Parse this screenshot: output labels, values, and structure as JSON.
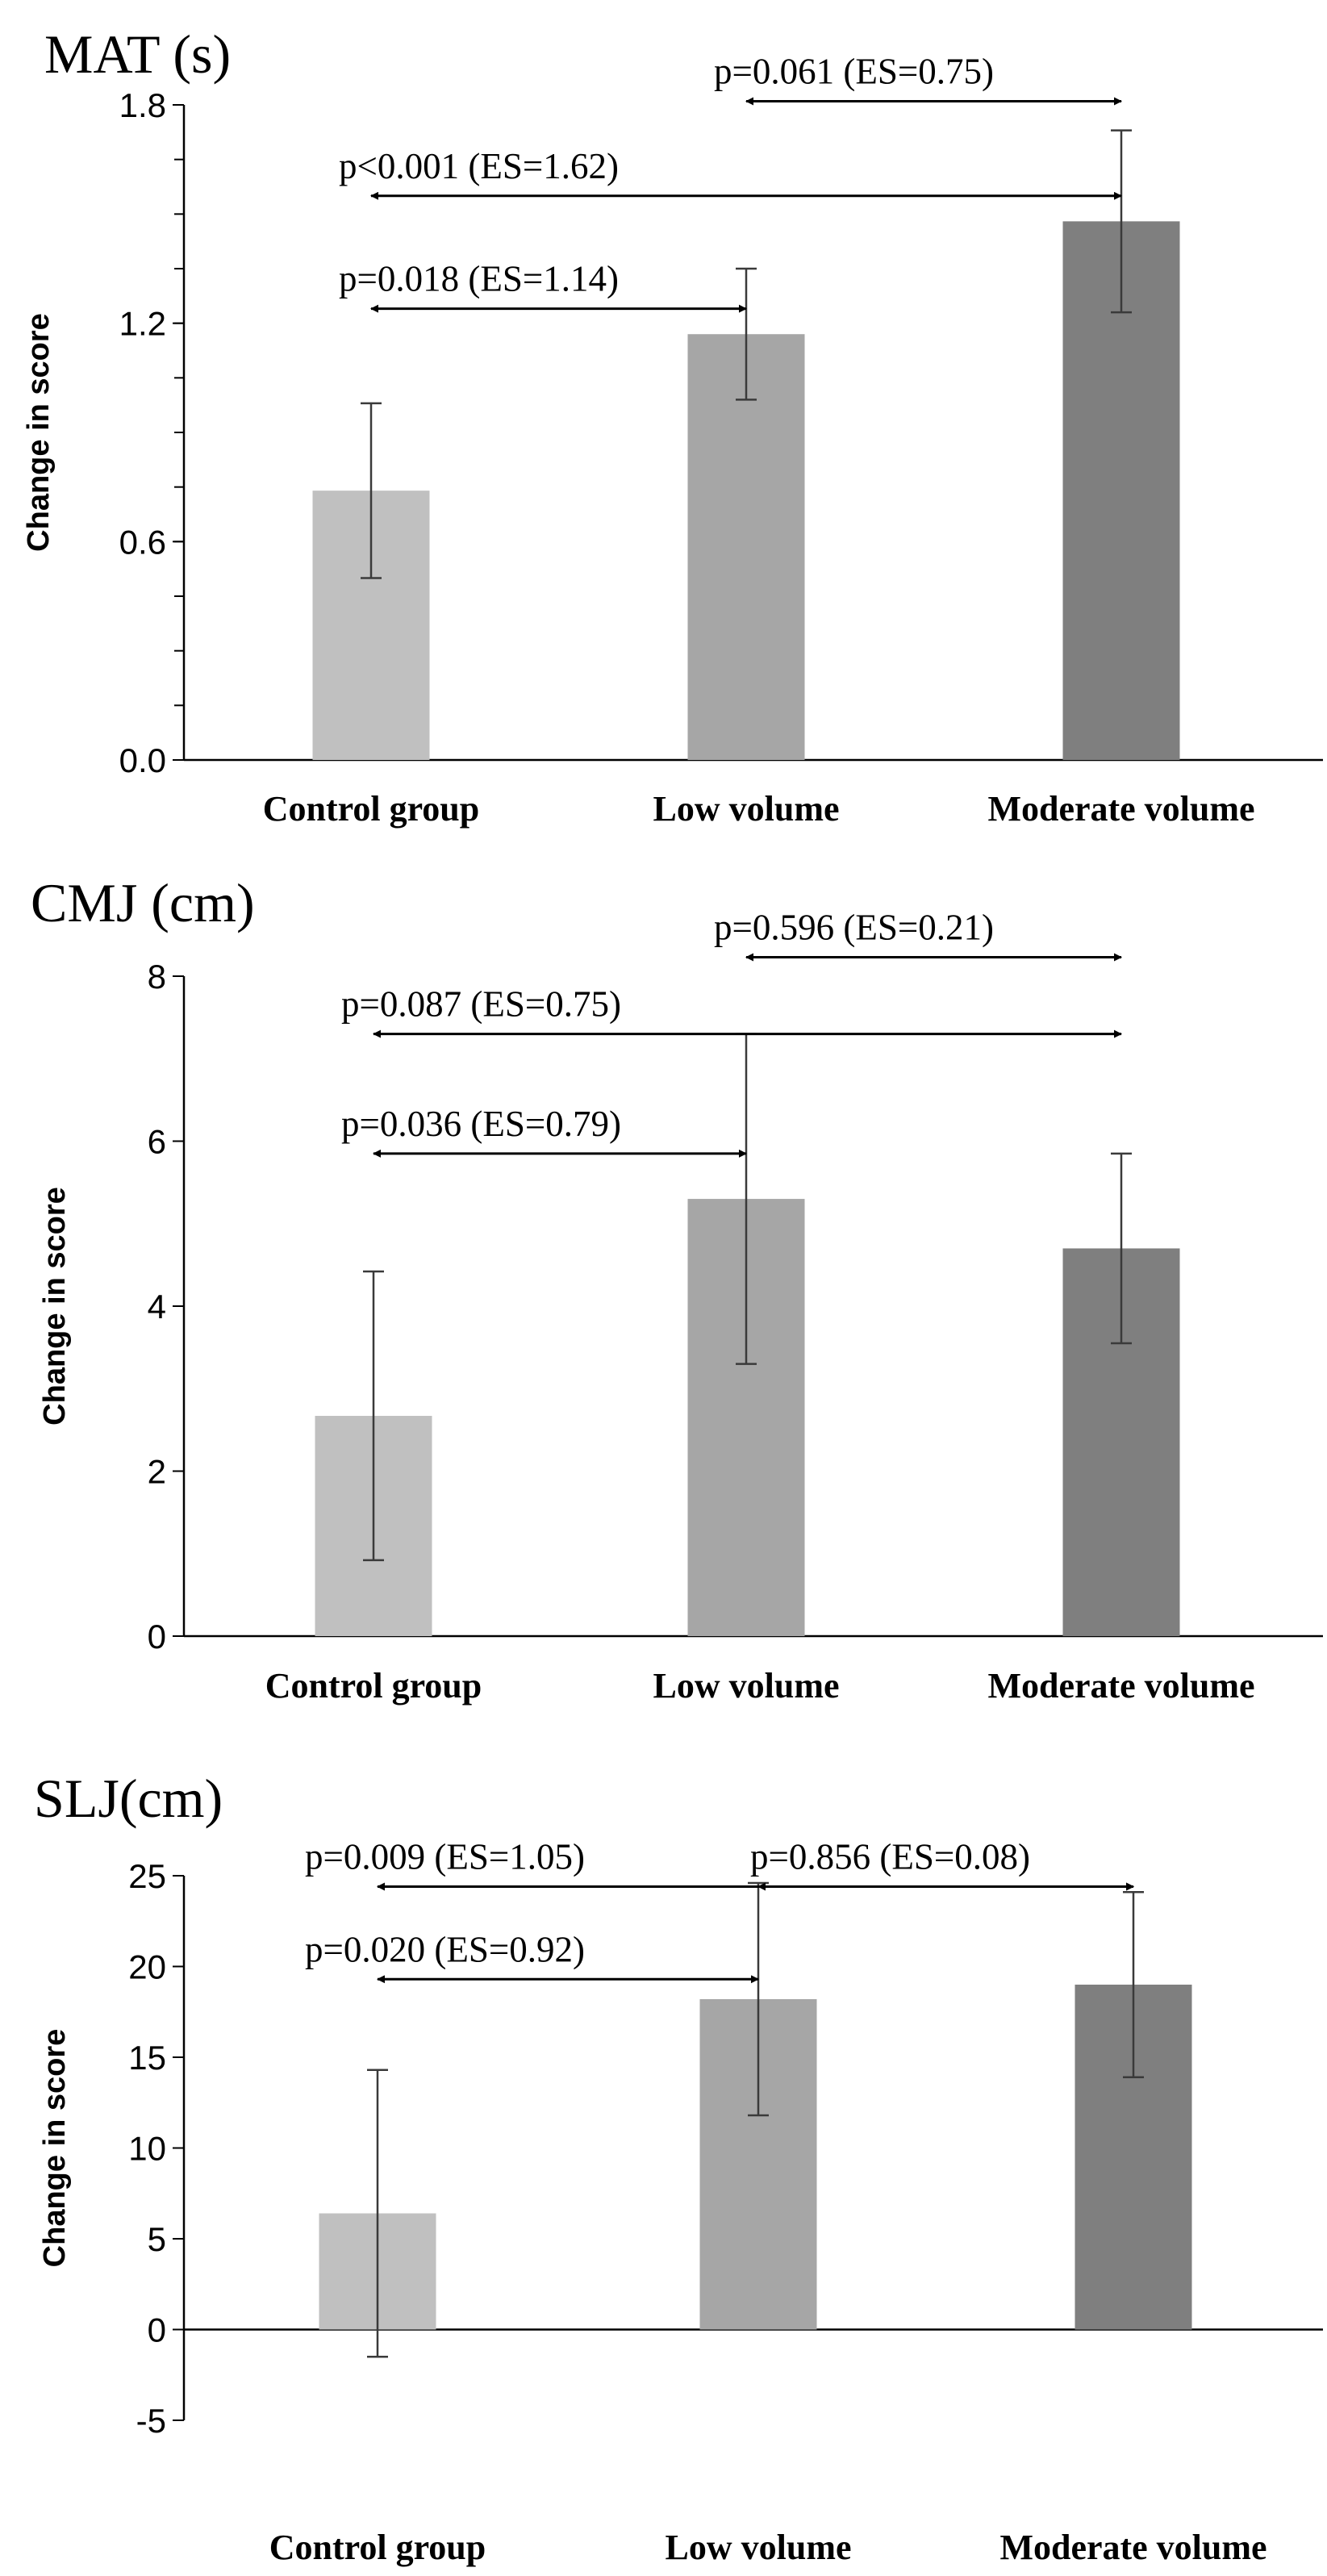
{
  "chart_data": [
    {
      "type": "bar",
      "title": "MAT (s)",
      "ylabel": "Change in score",
      "categories": [
        "Control group",
        "Low volume",
        "Moderate volume"
      ],
      "values": [
        0.74,
        1.17,
        1.48
      ],
      "errors": [
        0.24,
        0.18,
        0.25
      ],
      "ylim": [
        0,
        1.8
      ],
      "yticks": [
        0,
        0.6,
        1.2,
        1.8
      ],
      "ytick_labels": [
        "0.0",
        "0.6",
        "1.2",
        "1.8"
      ],
      "minor_tick_step": 0.15,
      "colors": [
        "#c0c0c0",
        "#a6a6a6",
        "#7f7f7f"
      ],
      "comparisons": [
        {
          "from": 1,
          "to": 2,
          "at": 1.81,
          "label": "p=0.061 (ES=0.75)"
        },
        {
          "from": 0,
          "to": 2,
          "at": 1.55,
          "label": "p<0.001 (ES=1.62)"
        },
        {
          "from": 0,
          "to": 1,
          "at": 1.24,
          "label": "p=0.018 (ES=1.14)"
        }
      ]
    },
    {
      "type": "bar",
      "title": "CMJ (cm)",
      "ylabel": "Change in score",
      "categories": [
        "Control group",
        "Low volume",
        "Moderate volume"
      ],
      "values": [
        2.67,
        5.3,
        4.7
      ],
      "errors": [
        1.75,
        2.0,
        1.15
      ],
      "ylim": [
        0,
        8
      ],
      "yticks": [
        0,
        2,
        4,
        6,
        8
      ],
      "ytick_labels": [
        "0",
        "2",
        "4",
        "6",
        "8"
      ],
      "minor_tick_step": 0,
      "colors": [
        "#c0c0c0",
        "#a6a6a6",
        "#7f7f7f"
      ],
      "comparisons": [
        {
          "from": 1,
          "to": 2,
          "at": 8.23,
          "label": "p=0.596 (ES=0.21)"
        },
        {
          "from": 0,
          "to": 2,
          "at": 7.3,
          "label": "p=0.087 (ES=0.75)"
        },
        {
          "from": 0,
          "to": 1,
          "at": 5.85,
          "label": "p=0.036 (ES=0.79)"
        }
      ]
    },
    {
      "type": "bar",
      "title": "SLJ(cm)",
      "ylabel": "Change in score",
      "categories": [
        "Control group",
        "Low volume",
        "Moderate volume"
      ],
      "values": [
        6.4,
        18.2,
        19.0
      ],
      "errors": [
        7.9,
        6.4,
        5.1
      ],
      "ylim": [
        -5,
        25
      ],
      "yticks": [
        -5,
        0,
        5,
        10,
        15,
        20,
        25
      ],
      "ytick_labels": [
        "-5",
        "0",
        "5",
        "10",
        "15",
        "20",
        "25"
      ],
      "minor_tick_step": 0,
      "colors": [
        "#c0c0c0",
        "#a6a6a6",
        "#7f7f7f"
      ],
      "comparisons": [
        {
          "from": 1,
          "to": 2,
          "at": 24.4,
          "label": "p=0.856 (ES=0.08)"
        },
        {
          "from": 0,
          "to": 2,
          "at": 24.4,
          "label": "p=0.009 (ES=1.05)"
        },
        {
          "from": 0,
          "to": 1,
          "at": 19.3,
          "label": "p=0.020 (ES=0.92)"
        }
      ]
    }
  ]
}
